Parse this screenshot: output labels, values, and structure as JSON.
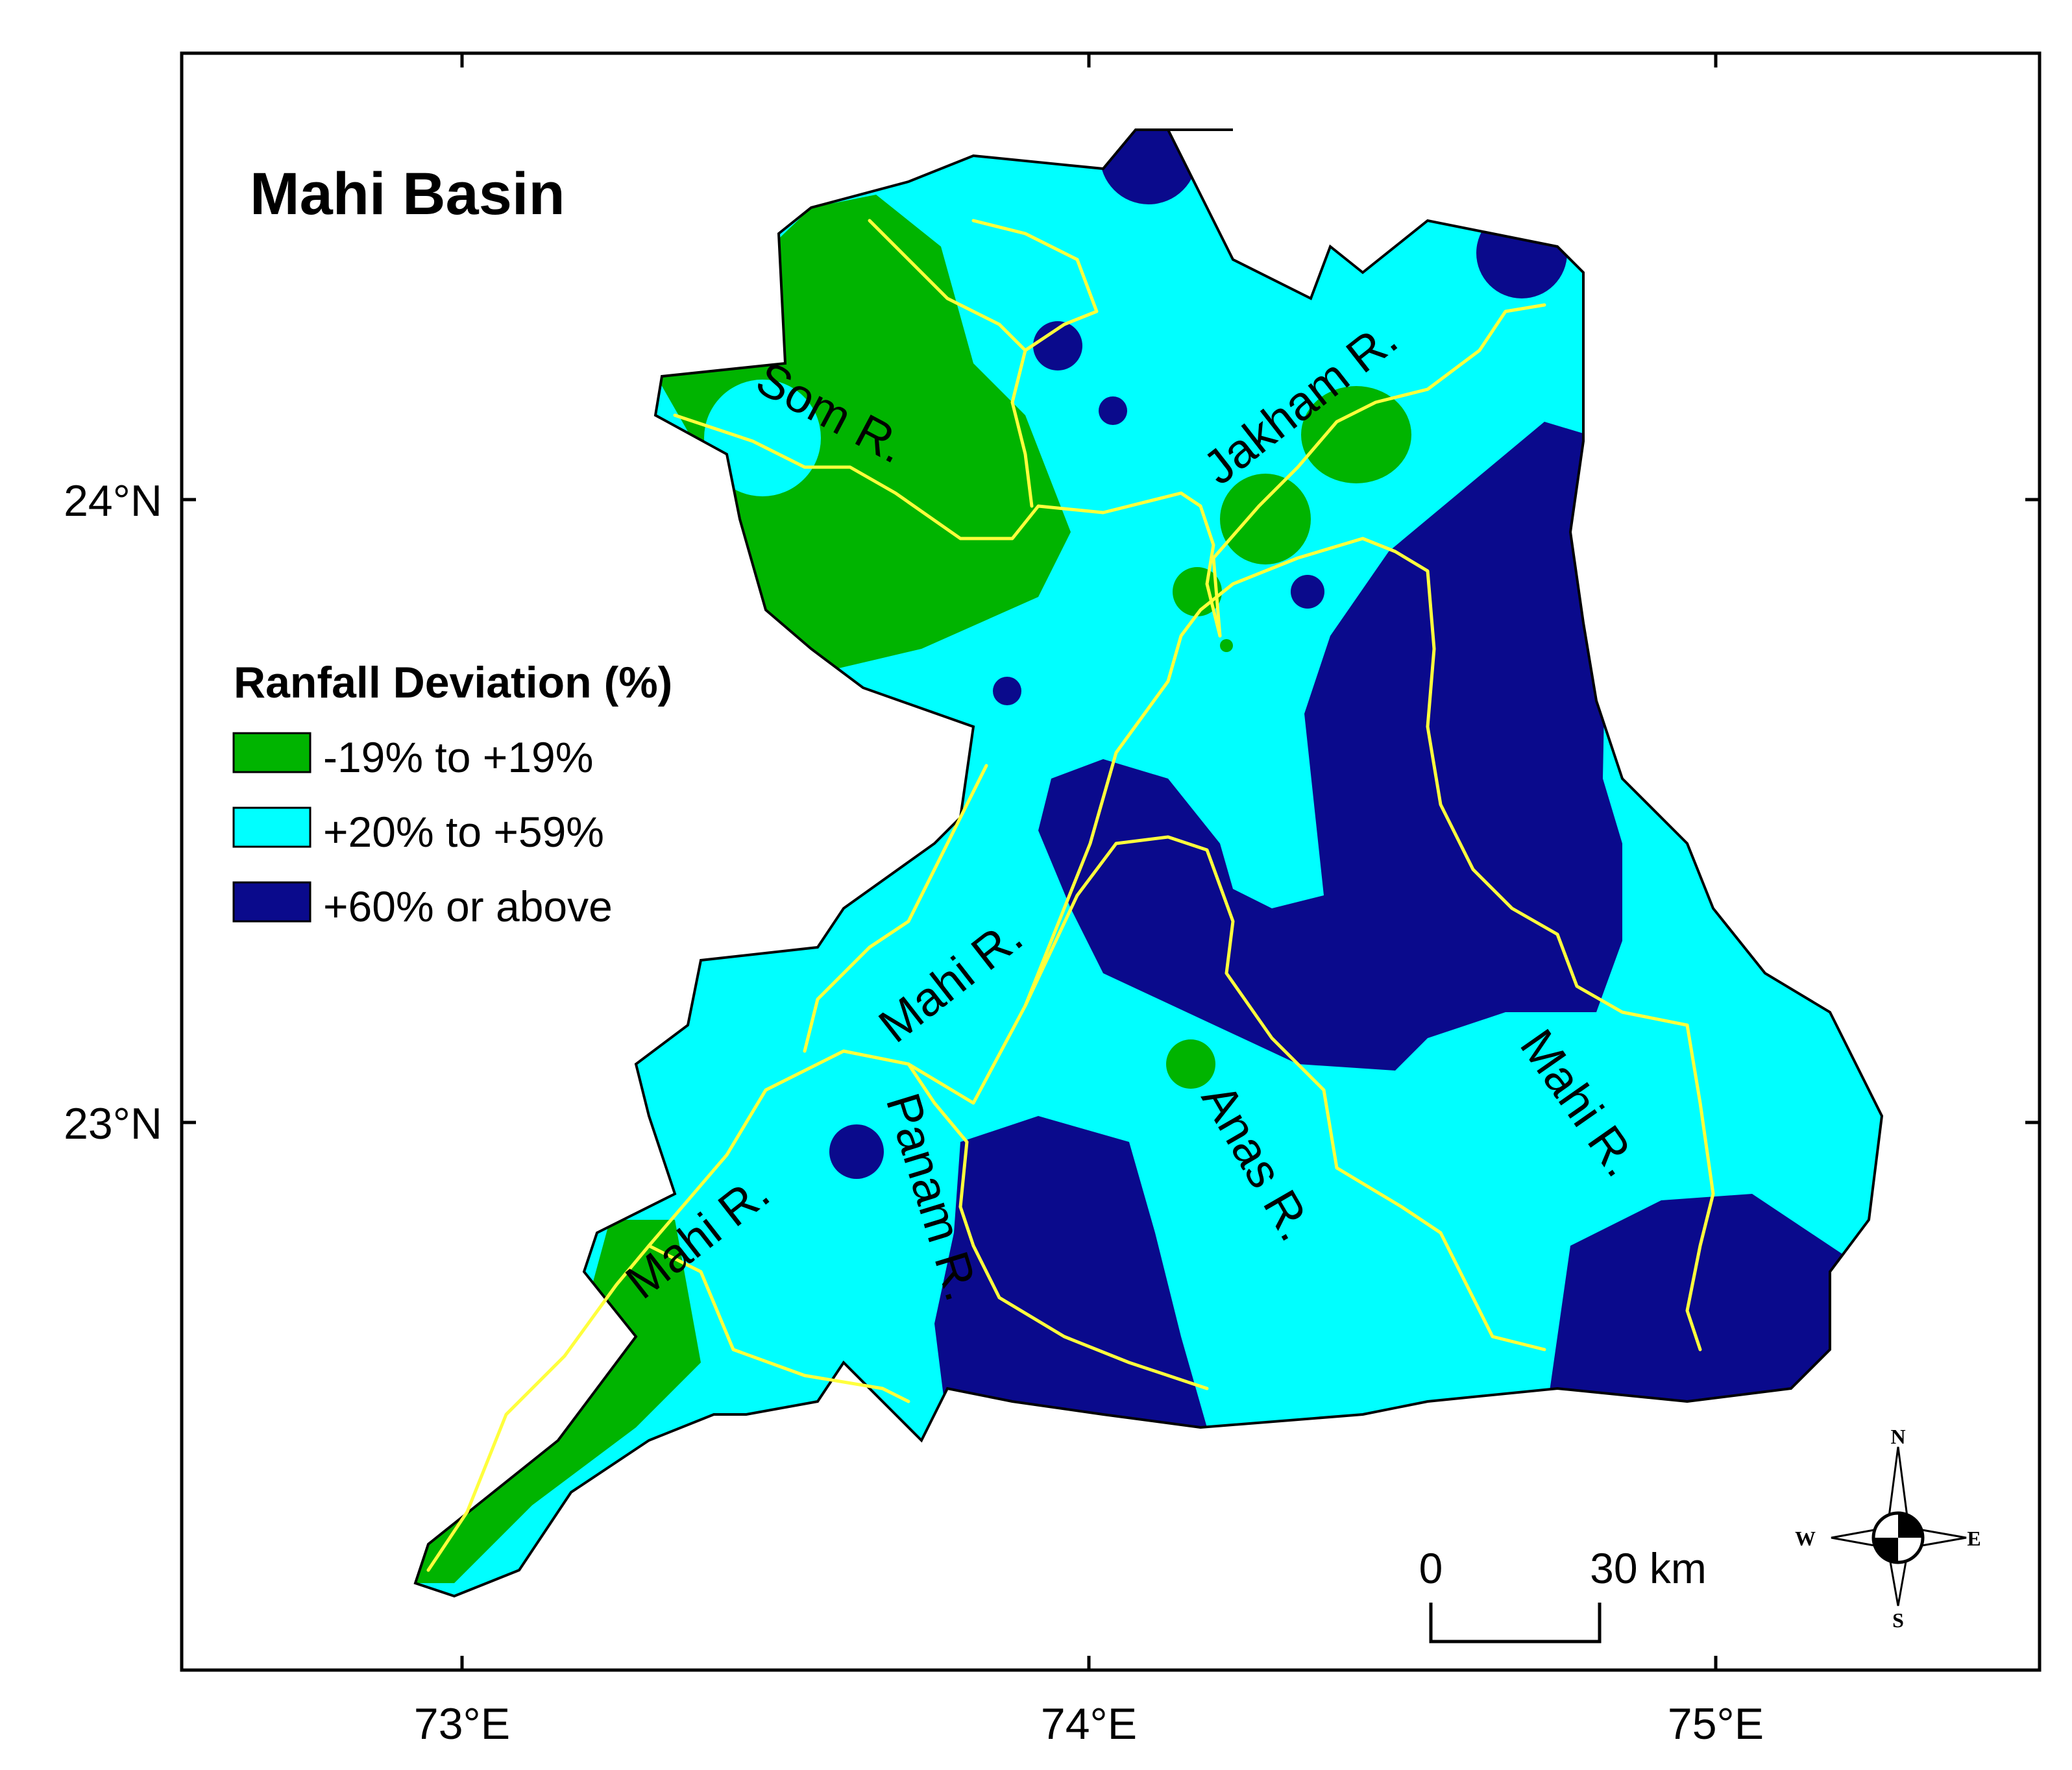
{
  "title": "Mahi Basin",
  "legend": {
    "title": "Ranfall Deviation (%)",
    "items": [
      {
        "label": "-19% to +19%",
        "color": "#00b400"
      },
      {
        "label": "+20% to +59%",
        "color": "#00ffff"
      },
      {
        "label": "+60% or above",
        "color": "#0a0a8c"
      }
    ]
  },
  "axes": {
    "x_ticks": [
      "73°E",
      "74°E",
      "75°E"
    ],
    "y_ticks": [
      "24°N",
      "23°N"
    ]
  },
  "rivers": [
    "Som R.",
    "Jakham R.",
    "Mahi R.",
    "Mahi R.",
    "Mahi R.",
    "Panam R.",
    "Anas R."
  ],
  "scale_bar": {
    "start": "0",
    "end": "30 km"
  },
  "compass": {
    "n": "N",
    "s": "S",
    "e": "E",
    "w": "W"
  },
  "colors": {
    "river": "#ffff3c",
    "boundary": "#000000"
  }
}
